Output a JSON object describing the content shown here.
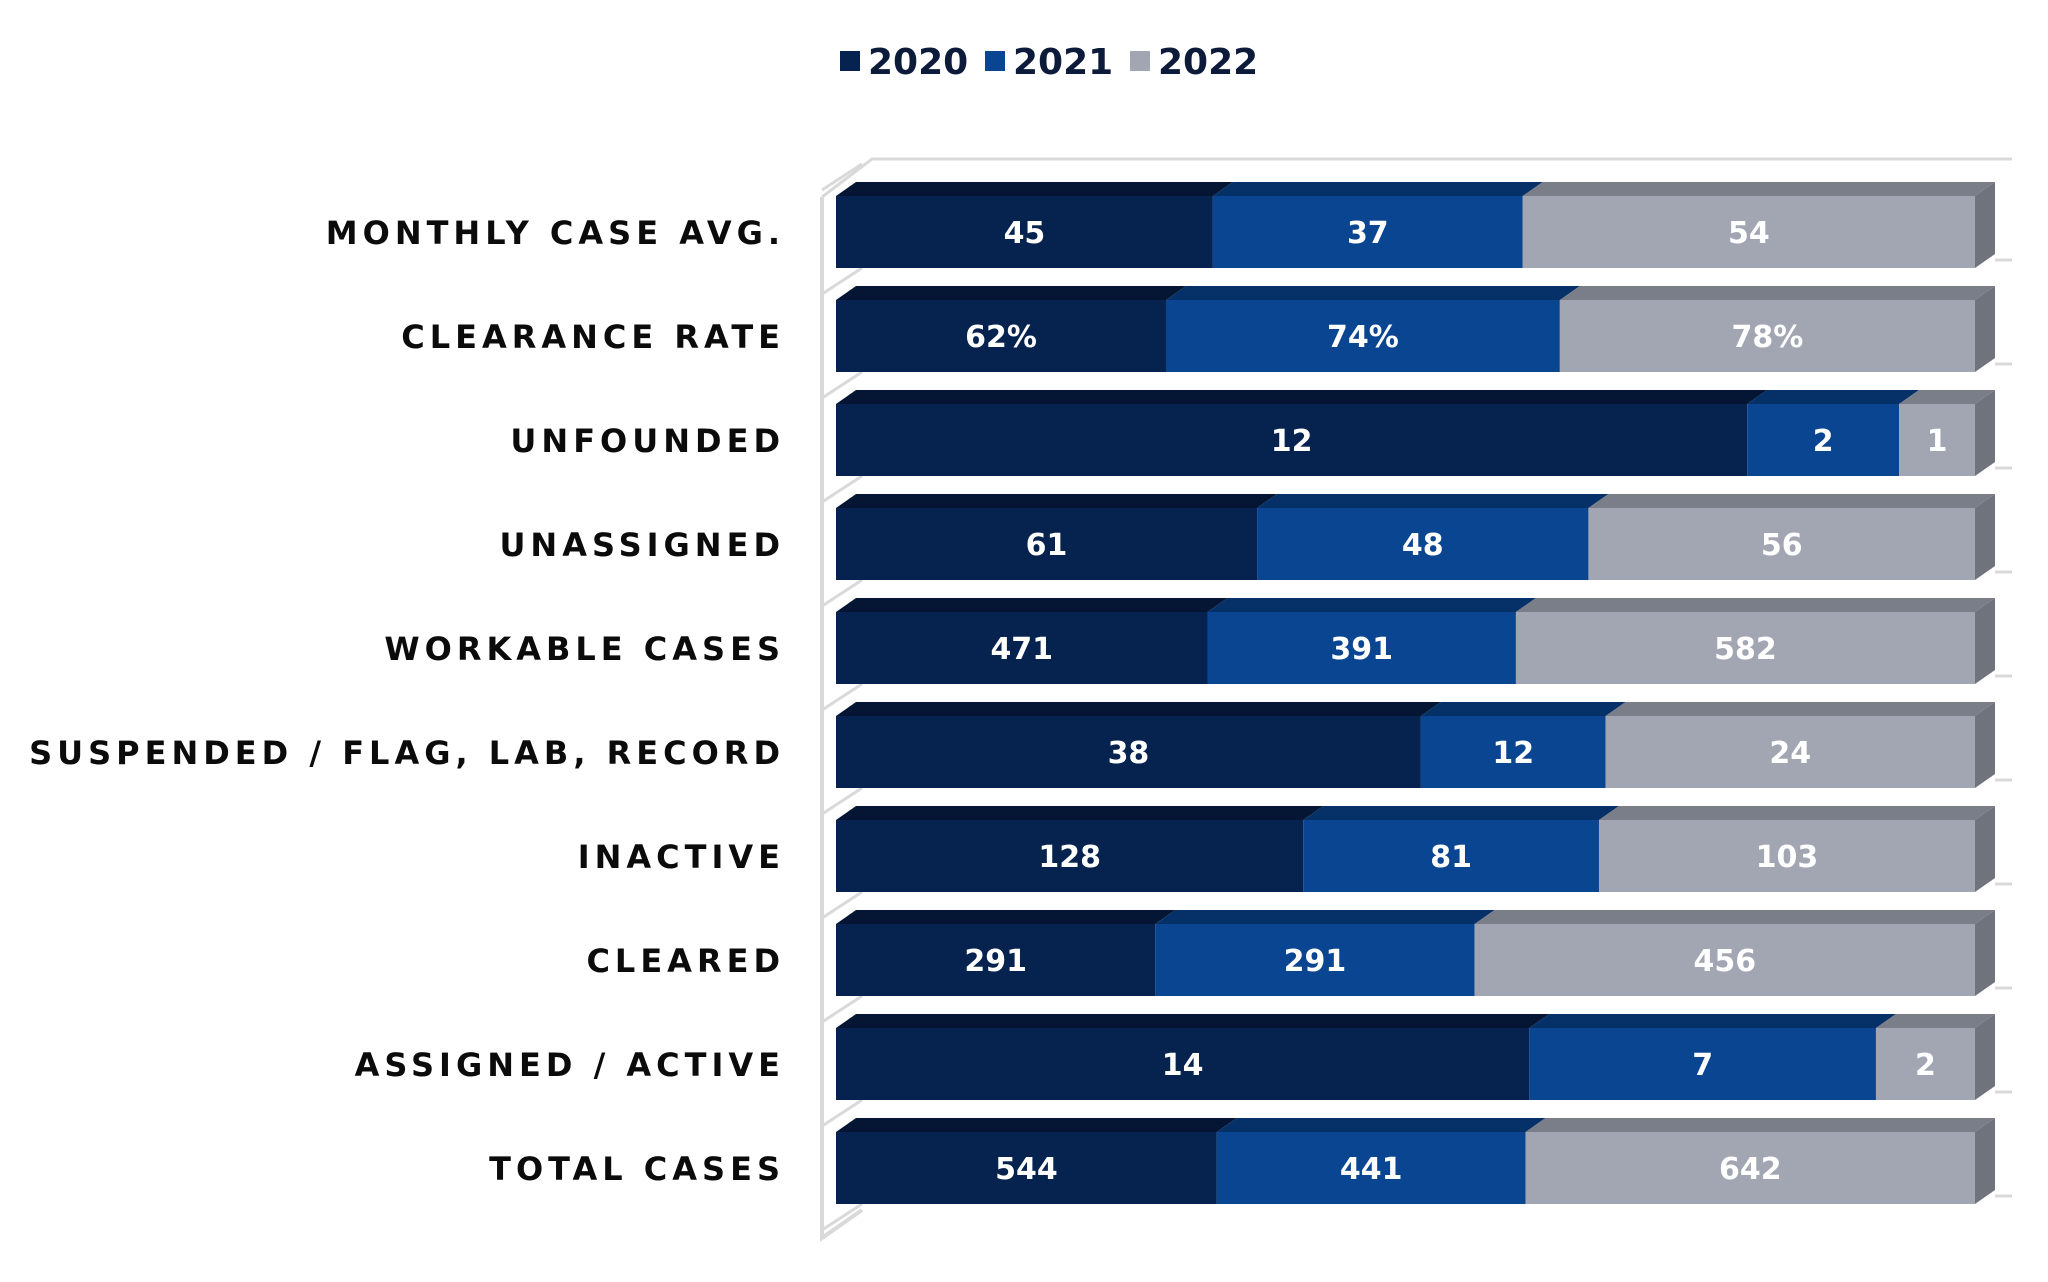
{
  "chart_data": {
    "type": "bar",
    "orientation": "horizontal",
    "stacked": "100%",
    "style": "3d",
    "title": "",
    "xlabel": "",
    "ylabel": "",
    "legend_position": "top-center",
    "grid": false,
    "categories": [
      "MONTHLY CASE AVG.",
      "CLEARANCE RATE",
      "UNFOUNDED",
      "UNASSIGNED",
      "WORKABLE CASES",
      "SUSPENDED / FLAG, LAB, RECORD",
      "INACTIVE",
      "CLEARED",
      "ASSIGNED / ACTIVE",
      "TOTAL CASES"
    ],
    "series": [
      {
        "name": "2020",
        "color": "#06224e",
        "topColor": "#041634",
        "values": [
          45,
          62,
          12,
          61,
          471,
          38,
          128,
          291,
          14,
          544
        ],
        "labels": [
          "45",
          "62%",
          "12",
          "61",
          "471",
          "38",
          "128",
          "291",
          "14",
          "544"
        ]
      },
      {
        "name": "2021",
        "color": "#0a4592",
        "topColor": "#063068",
        "values": [
          37,
          74,
          2,
          48,
          391,
          12,
          81,
          291,
          7,
          441
        ],
        "labels": [
          "37",
          "74%",
          "2",
          "48",
          "391",
          "12",
          "81",
          "291",
          "7",
          "441"
        ]
      },
      {
        "name": "2022",
        "color": "#a2a6b2",
        "topColor": "#7a7e88",
        "sideColor": "#6f737c",
        "values": [
          54,
          78,
          1,
          56,
          582,
          24,
          103,
          456,
          2,
          642
        ],
        "labels": [
          "54",
          "78%",
          "1",
          "56",
          "582",
          "24",
          "103",
          "456",
          "2",
          "642"
        ]
      }
    ]
  }
}
